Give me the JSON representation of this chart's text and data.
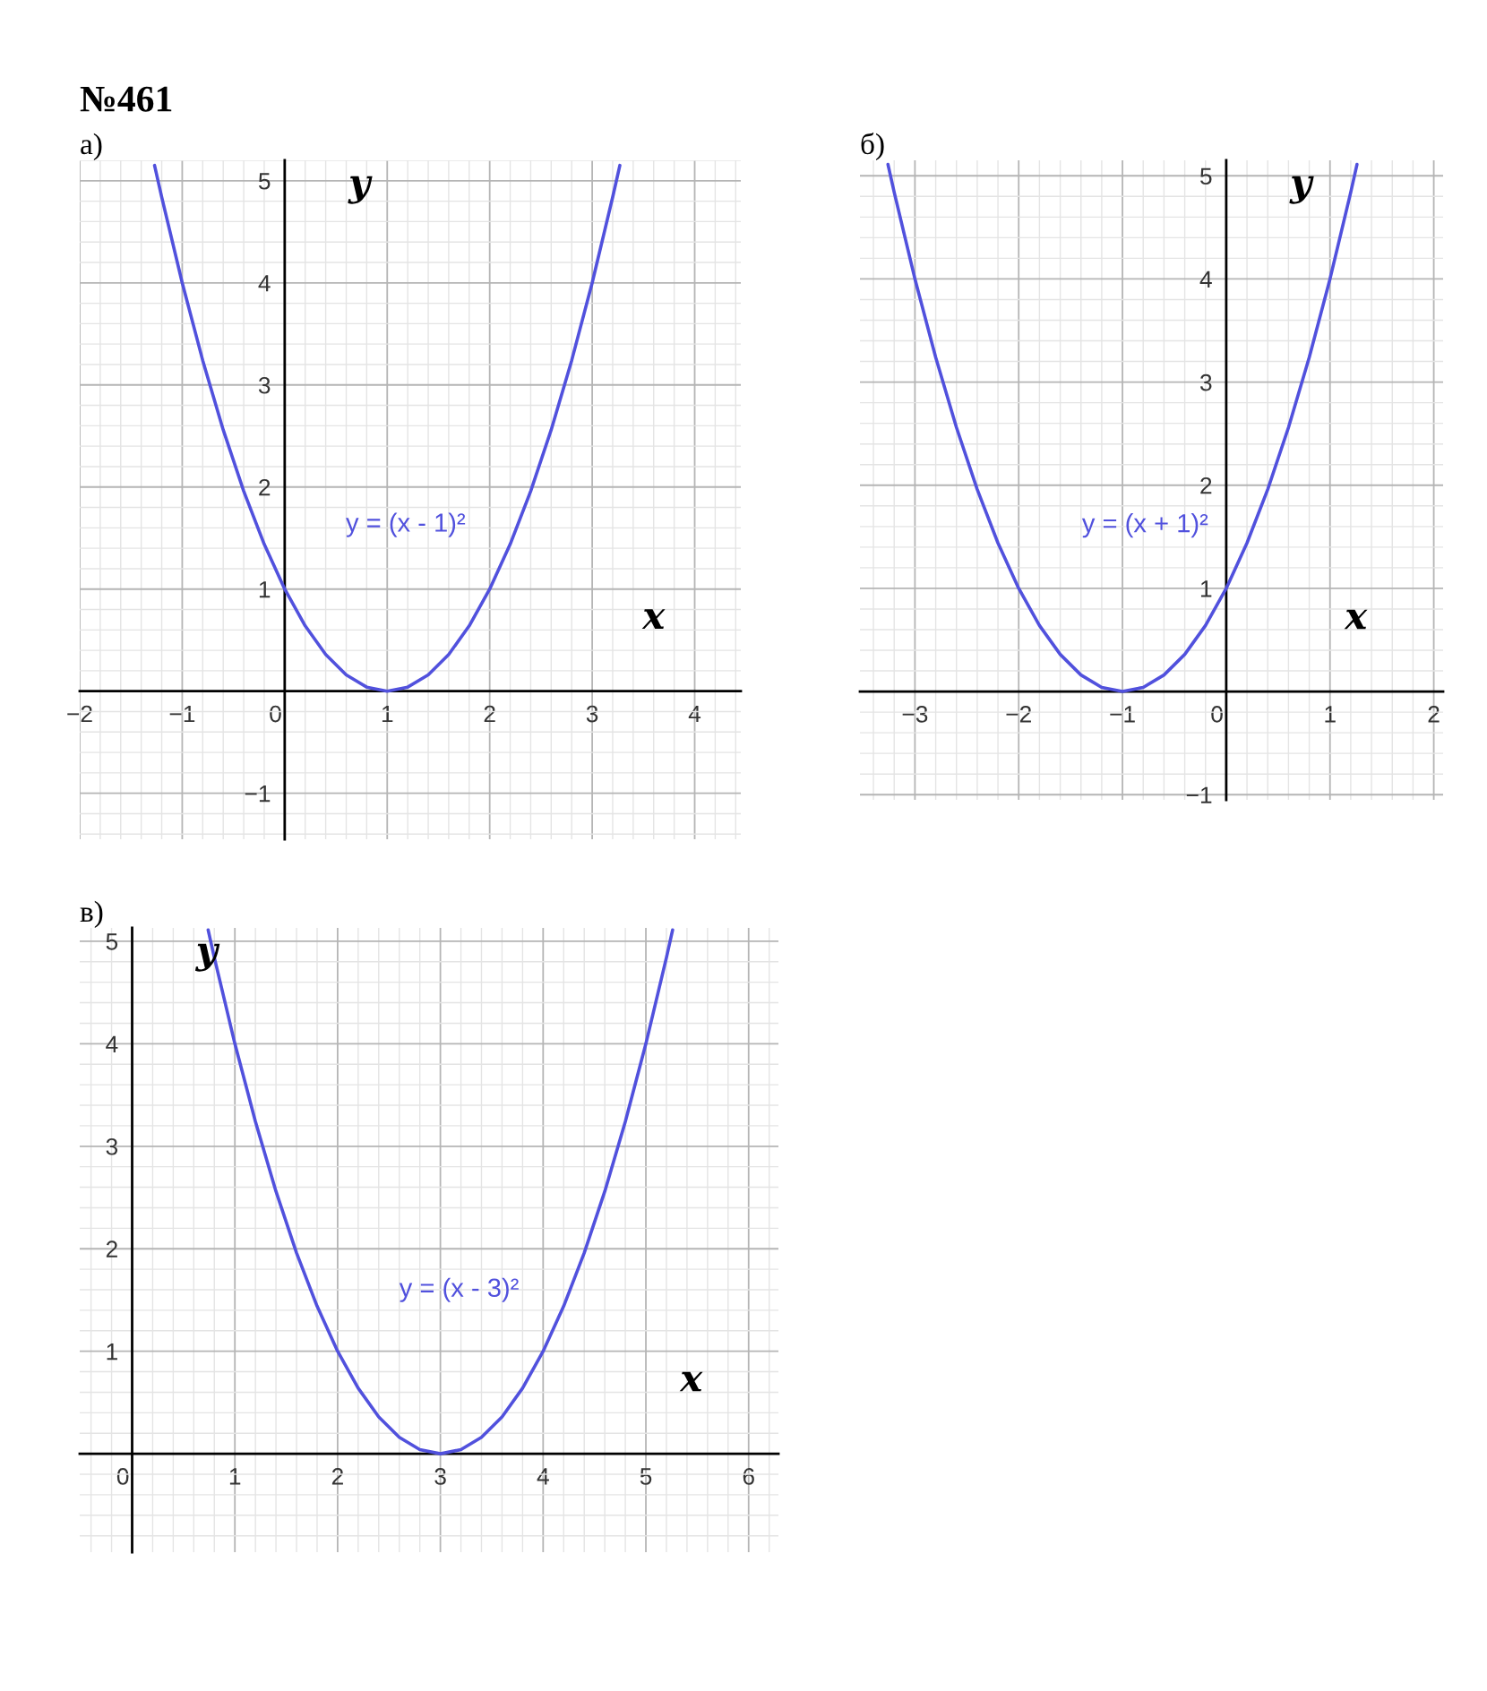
{
  "chart_data": [
    {
      "type": "line",
      "title": "а)",
      "xlabel": "x",
      "ylabel": "y",
      "annotations": [
        "№461"
      ],
      "x": [
        -1.27,
        -1.2,
        -1.0,
        -0.8,
        -0.6,
        -0.4,
        -0.2,
        0,
        0.2,
        0.4,
        0.6,
        0.8,
        1.0,
        1.2,
        1.4,
        1.6,
        1.8,
        2.0,
        2.2,
        2.4,
        2.6,
        2.8,
        3.0,
        3.2,
        3.27
      ],
      "series": [
        {
          "name": "y = (x - 1)²",
          "color": "#5151dd",
          "values": [
            5.15,
            4.84,
            4.0,
            3.24,
            2.56,
            1.96,
            1.44,
            1.0,
            0.64,
            0.36,
            0.16,
            0.04,
            0,
            0.04,
            0.16,
            0.36,
            0.64,
            1.0,
            1.44,
            1.96,
            2.56,
            3.24,
            4.0,
            4.84,
            5.15
          ]
        }
      ],
      "xlim": [
        -2,
        4.45
      ],
      "ylim": [
        -1.45,
        5.2
      ],
      "xticks": [
        -2,
        -1,
        0,
        1,
        2,
        3,
        4
      ],
      "yticks": [
        -1,
        1,
        2,
        3,
        4,
        5
      ],
      "grid": true
    },
    {
      "type": "line",
      "title": "б)",
      "xlabel": "x",
      "ylabel": "y",
      "x": [
        -3.26,
        -3.2,
        -3.0,
        -2.8,
        -2.6,
        -2.4,
        -2.2,
        -2.0,
        -1.8,
        -1.6,
        -1.4,
        -1.2,
        -1.0,
        -0.8,
        -0.6,
        -0.4,
        -0.2,
        0,
        0.2,
        0.4,
        0.6,
        0.8,
        1.0,
        1.2,
        1.26
      ],
      "series": [
        {
          "name": "y = (x + 1)²",
          "color": "#5151dd",
          "values": [
            5.11,
            4.84,
            4.0,
            3.24,
            2.56,
            1.96,
            1.44,
            1.0,
            0.64,
            0.36,
            0.16,
            0.04,
            0,
            0.04,
            0.16,
            0.36,
            0.64,
            1.0,
            1.44,
            1.96,
            2.56,
            3.24,
            4.0,
            4.84,
            5.11
          ]
        }
      ],
      "xlim": [
        -3.53,
        2.09
      ],
      "ylim": [
        -1.05,
        5.15
      ],
      "xticks": [
        -3,
        -2,
        -1,
        0,
        1,
        2
      ],
      "yticks": [
        -1,
        1,
        2,
        3,
        4,
        5
      ],
      "grid": true
    },
    {
      "type": "line",
      "title": "в)",
      "xlabel": "x",
      "ylabel": "y",
      "x": [
        0.74,
        0.8,
        1.0,
        1.2,
        1.4,
        1.6,
        1.8,
        2.0,
        2.2,
        2.4,
        2.6,
        2.8,
        3.0,
        3.2,
        3.4,
        3.6,
        3.8,
        4.0,
        4.2,
        4.4,
        4.6,
        4.8,
        5.0,
        5.2,
        5.26
      ],
      "series": [
        {
          "name": "y = (x - 3)²",
          "color": "#5151dd",
          "values": [
            5.11,
            4.84,
            4.0,
            3.24,
            2.56,
            1.96,
            1.44,
            1.0,
            0.64,
            0.36,
            0.16,
            0.04,
            0,
            0.04,
            0.16,
            0.36,
            0.64,
            1.0,
            1.44,
            1.96,
            2.56,
            3.24,
            4.0,
            4.84,
            5.11
          ]
        }
      ],
      "xlim": [
        -0.51,
        6.29
      ],
      "ylim": [
        -0.96,
        5.13
      ],
      "xticks": [
        0,
        1,
        2,
        3,
        4,
        5,
        6
      ],
      "yticks": [
        1,
        2,
        3,
        4,
        5
      ],
      "grid": true
    }
  ]
}
